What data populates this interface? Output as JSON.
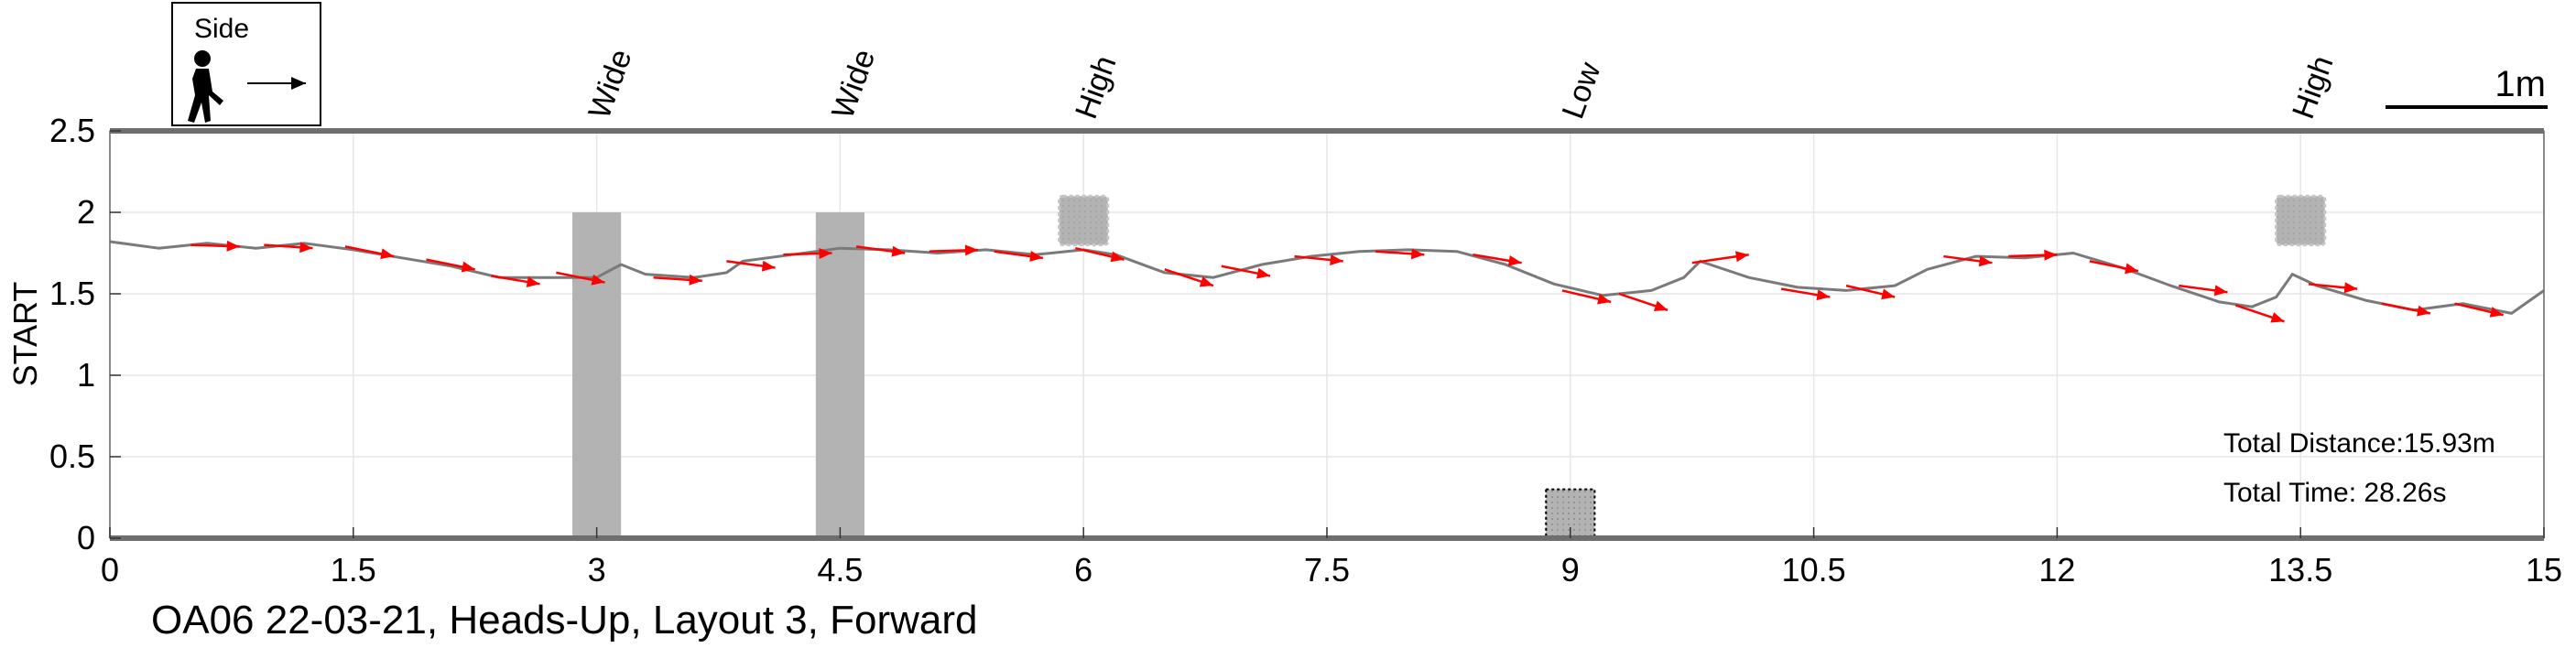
{
  "chart_data": {
    "type": "line",
    "title": "",
    "caption": "OA06 22-03-21, Heads-Up, Layout 3, Forward",
    "xlabel": "",
    "ylabel": "START",
    "xlim": [
      0,
      15
    ],
    "ylim": [
      0,
      2.5
    ],
    "x_ticks": [
      "0",
      "1.5",
      "3",
      "4.5",
      "6",
      "7.5",
      "9",
      "10.5",
      "12",
      "13.5",
      "15"
    ],
    "y_ticks": [
      "0",
      "0.5",
      "1",
      "1.5",
      "2",
      "2.5"
    ],
    "grid": true,
    "legend": {
      "label": "Side",
      "icon": "walking-person-icon",
      "arrow": "right-arrow-icon"
    },
    "scale_bar": {
      "label": "1m",
      "length": 1
    },
    "stats": {
      "distance": "Total Distance:15.93m",
      "time": "Total Time: 28.26s"
    },
    "obstacles": [
      {
        "label": "Wide",
        "x0": 2.85,
        "x1": 3.15,
        "y0": 0,
        "y1": 2.0,
        "style": "solid"
      },
      {
        "label": "Wide",
        "x0": 4.35,
        "x1": 4.65,
        "y0": 0,
        "y1": 2.0,
        "style": "solid"
      },
      {
        "label": "High",
        "x0": 5.85,
        "x1": 6.15,
        "y0": 1.8,
        "y1": 2.1,
        "style": "fuzzy"
      },
      {
        "label": "Low",
        "x0": 8.85,
        "x1": 9.15,
        "y0": 0,
        "y1": 0.3,
        "style": "dotted"
      },
      {
        "label": "High",
        "x0": 13.35,
        "x1": 13.65,
        "y0": 1.8,
        "y1": 2.1,
        "style": "fuzzy"
      }
    ],
    "path_color": "#7a7a7a",
    "arrow_color": "#ff0000",
    "obstacle_color": "#b3b3b3",
    "path": [
      [
        0,
        1.82
      ],
      [
        0.3,
        1.78
      ],
      [
        0.6,
        1.81
      ],
      [
        0.9,
        1.78
      ],
      [
        1.2,
        1.81
      ],
      [
        1.5,
        1.77
      ],
      [
        1.8,
        1.72
      ],
      [
        2.1,
        1.67
      ],
      [
        2.4,
        1.6
      ],
      [
        2.7,
        1.6
      ],
      [
        3.0,
        1.6
      ],
      [
        3.15,
        1.68
      ],
      [
        3.3,
        1.62
      ],
      [
        3.6,
        1.6
      ],
      [
        3.8,
        1.63
      ],
      [
        3.9,
        1.7
      ],
      [
        4.2,
        1.74
      ],
      [
        4.5,
        1.78
      ],
      [
        4.8,
        1.77
      ],
      [
        5.1,
        1.75
      ],
      [
        5.4,
        1.77
      ],
      [
        5.7,
        1.74
      ],
      [
        6.0,
        1.77
      ],
      [
        6.2,
        1.74
      ],
      [
        6.5,
        1.63
      ],
      [
        6.8,
        1.6
      ],
      [
        7.1,
        1.68
      ],
      [
        7.4,
        1.73
      ],
      [
        7.7,
        1.76
      ],
      [
        8.0,
        1.77
      ],
      [
        8.3,
        1.76
      ],
      [
        8.6,
        1.68
      ],
      [
        8.9,
        1.56
      ],
      [
        9.2,
        1.49
      ],
      [
        9.5,
        1.52
      ],
      [
        9.7,
        1.6
      ],
      [
        9.8,
        1.7
      ],
      [
        10.1,
        1.6
      ],
      [
        10.4,
        1.54
      ],
      [
        10.7,
        1.52
      ],
      [
        11.0,
        1.55
      ],
      [
        11.2,
        1.65
      ],
      [
        11.5,
        1.73
      ],
      [
        11.8,
        1.72
      ],
      [
        12.1,
        1.75
      ],
      [
        12.4,
        1.66
      ],
      [
        12.7,
        1.55
      ],
      [
        13.0,
        1.45
      ],
      [
        13.2,
        1.42
      ],
      [
        13.35,
        1.48
      ],
      [
        13.45,
        1.62
      ],
      [
        13.6,
        1.55
      ],
      [
        13.9,
        1.46
      ],
      [
        14.2,
        1.4
      ],
      [
        14.5,
        1.44
      ],
      [
        14.8,
        1.38
      ],
      [
        15.0,
        1.52
      ]
    ],
    "arrows": [
      {
        "x": 0.5,
        "y": 1.8,
        "dx": 0.3,
        "dy": -0.01
      },
      {
        "x": 0.95,
        "y": 1.8,
        "dx": 0.3,
        "dy": -0.02
      },
      {
        "x": 1.45,
        "y": 1.79,
        "dx": 0.3,
        "dy": -0.06
      },
      {
        "x": 1.95,
        "y": 1.71,
        "dx": 0.3,
        "dy": -0.06
      },
      {
        "x": 2.35,
        "y": 1.61,
        "dx": 0.3,
        "dy": -0.05
      },
      {
        "x": 2.75,
        "y": 1.63,
        "dx": 0.3,
        "dy": -0.06
      },
      {
        "x": 3.35,
        "y": 1.6,
        "dx": 0.3,
        "dy": -0.02
      },
      {
        "x": 3.8,
        "y": 1.7,
        "dx": 0.3,
        "dy": -0.04
      },
      {
        "x": 4.15,
        "y": 1.74,
        "dx": 0.3,
        "dy": 0.01
      },
      {
        "x": 4.6,
        "y": 1.79,
        "dx": 0.3,
        "dy": -0.04
      },
      {
        "x": 5.05,
        "y": 1.76,
        "dx": 0.3,
        "dy": 0.01
      },
      {
        "x": 5.45,
        "y": 1.76,
        "dx": 0.3,
        "dy": -0.04
      },
      {
        "x": 5.95,
        "y": 1.78,
        "dx": 0.3,
        "dy": -0.07
      },
      {
        "x": 6.5,
        "y": 1.65,
        "dx": 0.3,
        "dy": -0.1
      },
      {
        "x": 6.85,
        "y": 1.67,
        "dx": 0.3,
        "dy": -0.06
      },
      {
        "x": 7.3,
        "y": 1.73,
        "dx": 0.3,
        "dy": -0.03
      },
      {
        "x": 7.8,
        "y": 1.76,
        "dx": 0.3,
        "dy": -0.02
      },
      {
        "x": 8.4,
        "y": 1.74,
        "dx": 0.3,
        "dy": -0.05
      },
      {
        "x": 8.95,
        "y": 1.52,
        "dx": 0.3,
        "dy": -0.07
      },
      {
        "x": 9.3,
        "y": 1.5,
        "dx": 0.3,
        "dy": -0.1
      },
      {
        "x": 9.75,
        "y": 1.69,
        "dx": 0.35,
        "dy": 0.05
      },
      {
        "x": 10.3,
        "y": 1.53,
        "dx": 0.3,
        "dy": -0.05
      },
      {
        "x": 10.7,
        "y": 1.55,
        "dx": 0.3,
        "dy": -0.07
      },
      {
        "x": 11.3,
        "y": 1.73,
        "dx": 0.3,
        "dy": -0.04
      },
      {
        "x": 11.7,
        "y": 1.73,
        "dx": 0.3,
        "dy": 0.01
      },
      {
        "x": 12.2,
        "y": 1.7,
        "dx": 0.3,
        "dy": -0.06
      },
      {
        "x": 12.75,
        "y": 1.55,
        "dx": 0.3,
        "dy": -0.04
      },
      {
        "x": 13.1,
        "y": 1.43,
        "dx": 0.3,
        "dy": -0.1
      },
      {
        "x": 13.55,
        "y": 1.56,
        "dx": 0.3,
        "dy": -0.03
      },
      {
        "x": 14.0,
        "y": 1.44,
        "dx": 0.3,
        "dy": -0.06
      },
      {
        "x": 14.45,
        "y": 1.44,
        "dx": 0.3,
        "dy": -0.07
      }
    ]
  }
}
